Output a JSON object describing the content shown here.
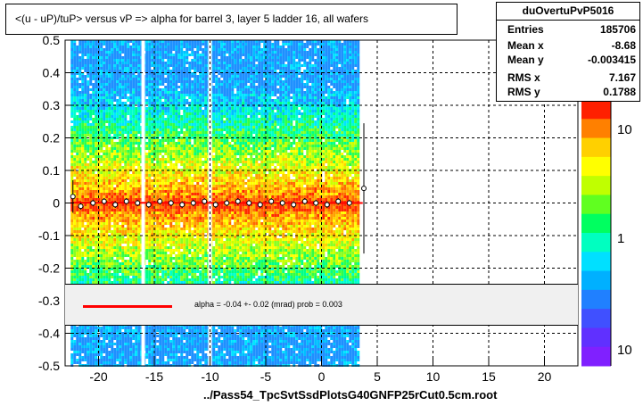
{
  "title": "<(u - uP)/tuP> versus   vP => alpha for barrel 3, layer 5 ladder 16, all wafers",
  "stats": {
    "name": "duOvertuPvP5016",
    "rows": [
      {
        "label": "Entries",
        "value": "185706"
      },
      {
        "label": "Mean x",
        "value": "-8.68"
      },
      {
        "label": "Mean y",
        "value": "-0.003415"
      },
      {
        "label": "RMS x",
        "value": "7.167"
      },
      {
        "label": "RMS y",
        "value": "0.1788"
      }
    ]
  },
  "fit": {
    "text": "alpha =   -0.04 +-  0.02 (mrad) prob = 0.003",
    "line_color": "#ff0000"
  },
  "footer": "../Pass54_TpcSvtSsdPlotsG40GNFP25rCut0.5cm.root",
  "colorbar_ticks": [
    "10",
    "1",
    "10"
  ],
  "chart_data": {
    "type": "heatmap",
    "xlim": [
      -23,
      23
    ],
    "ylim": [
      -0.5,
      0.5
    ],
    "x_ticks": [
      -20,
      -15,
      -10,
      -5,
      0,
      5,
      10,
      15,
      20
    ],
    "y_ticks": [
      0.5,
      0.4,
      0.3,
      0.2,
      0.1,
      0,
      -0.1,
      -0.2,
      -0.3,
      -0.4,
      -0.5
    ],
    "x_tick_labels": [
      "-20",
      "-15",
      "-10",
      "-5",
      "0",
      "5",
      "10",
      "15",
      "20"
    ],
    "y_tick_labels": [
      "0.5",
      "0.4",
      "0.3",
      "0.2",
      "0.1",
      "0",
      "-0.1",
      "-0.2",
      "-0.3",
      "-0.4",
      "-0.5"
    ],
    "filled_x_range": [
      -22.5,
      3.2
    ],
    "gaps_x": [
      -16.0,
      -10.0
    ],
    "grid": true,
    "profile": {
      "x": [
        -22.3,
        -21.6,
        -20.5,
        -19.5,
        -18.5,
        -17.5,
        -16.5,
        -15.5,
        -14.5,
        -13.5,
        -12.5,
        -11.5,
        -10.5,
        -9.5,
        -8.5,
        -7.5,
        -6.5,
        -5.5,
        -4.5,
        -3.5,
        -2.5,
        -1.5,
        -0.5,
        0.5,
        1.5,
        2.5,
        3.8
      ],
      "y": [
        0.02,
        -0.01,
        0.0,
        0.005,
        -0.005,
        0.005,
        0.0,
        -0.005,
        0.005,
        0.0,
        -0.005,
        0.0,
        0.005,
        -0.005,
        0.0,
        0.005,
        0.0,
        -0.005,
        0.005,
        0.0,
        -0.005,
        0.005,
        0.0,
        -0.005,
        0.005,
        0.0,
        0.045
      ],
      "err": [
        0.05,
        0.01,
        0.01,
        0.01,
        0.01,
        0.01,
        0.01,
        0.01,
        0.01,
        0.01,
        0.01,
        0.01,
        0.01,
        0.01,
        0.01,
        0.01,
        0.01,
        0.01,
        0.01,
        0.01,
        0.01,
        0.01,
        0.01,
        0.01,
        0.01,
        0.01,
        0.2
      ]
    },
    "fit_line": {
      "slope": -4e-05,
      "intercept": 0.0
    }
  }
}
